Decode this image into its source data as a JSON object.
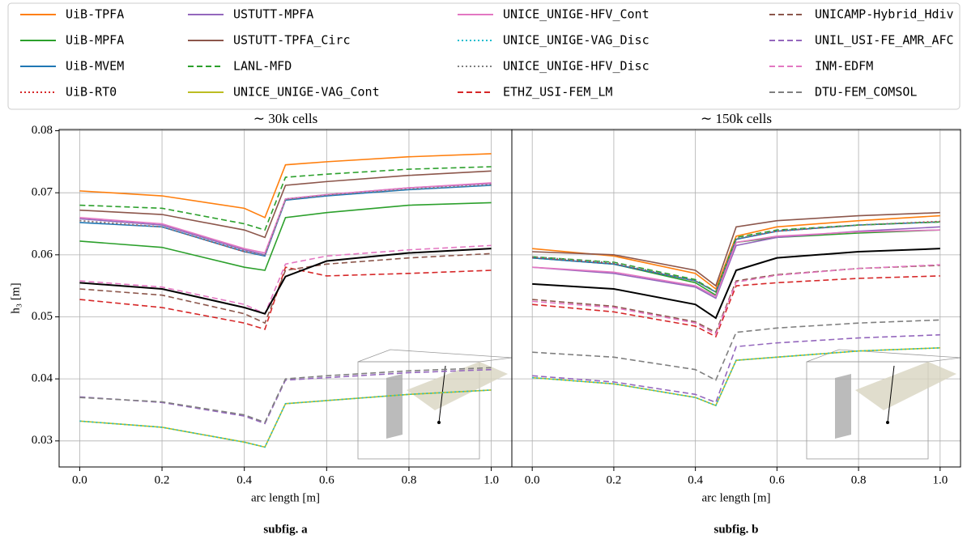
{
  "chart_data": [
    {
      "type": "line",
      "title": "∼ 30k cells",
      "xlabel": "arc length [m]",
      "ylabel": "h₃ [m]",
      "caption": "subfig. a",
      "x": [
        0,
        0.2,
        0.4,
        0.45,
        0.5,
        0.6,
        0.8,
        1.0
      ],
      "xlim": [
        -0.05,
        1.05
      ],
      "ylim": [
        0.0258,
        0.0802
      ],
      "xticks": [
        {
          "value": 0,
          "label": "0.0"
        },
        0.2,
        0.4,
        0.6,
        0.8,
        {
          "value": 1,
          "label": "1.0"
        }
      ],
      "yticks": [
        0.03,
        0.04,
        0.05,
        0.06,
        0.07,
        0.08
      ],
      "grid": true,
      "series": [
        {
          "name": "UiB-TPFA",
          "color": "#ff7f0e",
          "dash": "solid",
          "values": [
            0.0703,
            0.0695,
            0.0675,
            0.066,
            0.0745,
            0.075,
            0.0758,
            0.0763
          ]
        },
        {
          "name": "UiB-MPFA",
          "color": "#2ca02c",
          "dash": "solid",
          "values": [
            0.0622,
            0.0612,
            0.058,
            0.0575,
            0.066,
            0.0668,
            0.068,
            0.0684
          ]
        },
        {
          "name": "UiB-MVEM",
          "color": "#1f77b4",
          "dash": "solid",
          "values": [
            0.0652,
            0.0645,
            0.0605,
            0.0598,
            0.0688,
            0.0695,
            0.0705,
            0.0712
          ]
        },
        {
          "name": "UiB-RT0",
          "color": "#d62728",
          "dash": "dotted",
          "values": [
            0.0655,
            0.0645,
            0.0605,
            0.06,
            0.069,
            0.0697,
            0.0707,
            0.0714
          ]
        },
        {
          "name": "USTUTT-MPFA",
          "color": "#9467bd",
          "dash": "solid",
          "values": [
            0.0658,
            0.0648,
            0.0608,
            0.06,
            0.069,
            0.0697,
            0.0708,
            0.0715
          ]
        },
        {
          "name": "USTUTT-TPFA_Circ",
          "color": "#8c564b",
          "dash": "solid",
          "values": [
            0.0672,
            0.0665,
            0.064,
            0.0628,
            0.0712,
            0.0718,
            0.0728,
            0.0735
          ]
        },
        {
          "name": "LANL-MFD",
          "color": "#2ca02c",
          "dash": "dashed",
          "values": [
            0.068,
            0.0675,
            0.065,
            0.064,
            0.0725,
            0.073,
            0.0738,
            0.0742
          ]
        },
        {
          "name": "UNICE_UNIGE-VAG_Cont",
          "color": "#bcbd22",
          "dash": "solid",
          "values": [
            0.0332,
            0.0322,
            0.0298,
            0.029,
            0.036,
            0.0365,
            0.0375,
            0.0382
          ]
        },
        {
          "name": "UNICE_UNIGE-HFV_Cont",
          "color": "#e377c2",
          "dash": "solid",
          "values": [
            0.066,
            0.065,
            0.061,
            0.0603,
            0.069,
            0.0697,
            0.0708,
            0.0716
          ]
        },
        {
          "name": "UNICE_UNIGE-VAG_Disc",
          "color": "#17becf",
          "dash": "dotted",
          "values": [
            0.0332,
            0.0322,
            0.0298,
            0.029,
            0.036,
            0.0365,
            0.0375,
            0.0382
          ]
        },
        {
          "name": "UNICE_UNIGE-HFV_Disc",
          "color": "#7f7f7f",
          "dash": "dotted",
          "values": [
            0.0655,
            0.0645,
            0.0606,
            0.0599,
            0.0689,
            0.0696,
            0.0706,
            0.0713
          ]
        },
        {
          "name": "ETHZ_USI-FEM_LM",
          "color": "#d62728",
          "dash": "dashed",
          "values": [
            0.0528,
            0.0515,
            0.049,
            0.048,
            0.058,
            0.0566,
            0.057,
            0.0575
          ]
        },
        {
          "name": "UNICAMP-Hybrid_Hdiv",
          "color": "#8c564b",
          "dash": "dashed",
          "values": [
            0.0545,
            0.0535,
            0.0505,
            0.049,
            0.0575,
            0.0585,
            0.0595,
            0.0602
          ]
        },
        {
          "name": "UNIL_USI-FE_AMR_AFC",
          "color": "#9467bd",
          "dash": "dashed",
          "values": [
            0.0371,
            0.0362,
            0.034,
            0.0328,
            0.0398,
            0.0402,
            0.041,
            0.0415
          ]
        },
        {
          "name": "INM-EDFM",
          "color": "#e377c2",
          "dash": "dashed",
          "values": [
            0.0558,
            0.0548,
            0.052,
            0.0505,
            0.0585,
            0.0598,
            0.0608,
            0.0615
          ]
        },
        {
          "name": "DTU-FEM_COMSOL",
          "color": "#7f7f7f",
          "dash": "dashed",
          "values": [
            0.037,
            0.0363,
            0.0342,
            0.033,
            0.04,
            0.0405,
            0.0413,
            0.0418
          ]
        },
        {
          "color": "#000000",
          "dash": "solid",
          "values": [
            0.0555,
            0.0545,
            0.0515,
            0.0505,
            0.0565,
            0.059,
            0.0603,
            0.061
          ]
        }
      ]
    },
    {
      "type": "line",
      "title": "∼ 150k cells",
      "xlabel": "arc length [m]",
      "caption": "subfig. b",
      "x": [
        0,
        0.2,
        0.4,
        0.45,
        0.5,
        0.6,
        0.8,
        1.0
      ],
      "xlim": [
        -0.05,
        1.05
      ],
      "ylim": [
        0.0258,
        0.0802
      ],
      "xticks": [
        {
          "value": 0,
          "label": "0.0"
        },
        0.2,
        0.4,
        0.6,
        0.8,
        {
          "value": 1,
          "label": "1.0"
        }
      ],
      "yticks": [
        0.03,
        0.04,
        0.05,
        0.06,
        0.07,
        0.08
      ],
      "grid": true,
      "series": [
        {
          "color": "#ff7f0e",
          "dash": "solid",
          "values": [
            0.061,
            0.0598,
            0.057,
            0.0545,
            0.063,
            0.0645,
            0.0655,
            0.0663
          ]
        },
        {
          "color": "#2ca02c",
          "dash": "solid",
          "values": [
            0.0595,
            0.0585,
            0.0555,
            0.0535,
            0.062,
            0.0628,
            0.0635,
            0.064
          ]
        },
        {
          "color": "#1f77b4",
          "dash": "solid",
          "values": [
            0.0595,
            0.0585,
            0.0558,
            0.054,
            0.0625,
            0.0638,
            0.0648,
            0.0653
          ]
        },
        {
          "color": "#d62728",
          "dash": "dotted",
          "values": [
            0.0596,
            0.0586,
            0.0558,
            0.054,
            0.0626,
            0.0638,
            0.0648,
            0.0654
          ]
        },
        {
          "color": "#9467bd",
          "dash": "solid",
          "values": [
            0.058,
            0.057,
            0.0548,
            0.053,
            0.0615,
            0.0628,
            0.0638,
            0.0645
          ]
        },
        {
          "color": "#8c564b",
          "dash": "solid",
          "values": [
            0.0605,
            0.06,
            0.0575,
            0.055,
            0.0645,
            0.0655,
            0.0663,
            0.0668
          ]
        },
        {
          "color": "#2ca02c",
          "dash": "dashed",
          "values": [
            0.0597,
            0.0588,
            0.056,
            0.054,
            0.0628,
            0.064,
            0.0648,
            0.0653
          ]
        },
        {
          "color": "#bcbd22",
          "dash": "solid",
          "values": [
            0.0402,
            0.0392,
            0.037,
            0.0357,
            0.043,
            0.0435,
            0.0445,
            0.045
          ]
        },
        {
          "color": "#e377c2",
          "dash": "solid",
          "values": [
            0.058,
            0.0572,
            0.055,
            0.0533,
            0.062,
            0.063,
            0.0637,
            0.064
          ]
        },
        {
          "color": "#17becf",
          "dash": "dotted",
          "values": [
            0.0402,
            0.0392,
            0.037,
            0.0357,
            0.043,
            0.0435,
            0.0445,
            0.045
          ]
        },
        {
          "color": "#7f7f7f",
          "dash": "dotted",
          "values": [
            0.0597,
            0.0587,
            0.0558,
            0.054,
            0.0626,
            0.0639,
            0.0648,
            0.0653
          ]
        },
        {
          "color": "#d62728",
          "dash": "dashed",
          "values": [
            0.052,
            0.0508,
            0.0485,
            0.0468,
            0.055,
            0.0555,
            0.0562,
            0.0566
          ]
        },
        {
          "color": "#8c564b",
          "dash": "dashed",
          "values": [
            0.0528,
            0.0517,
            0.0492,
            0.0475,
            0.0558,
            0.0568,
            0.0578,
            0.0583
          ]
        },
        {
          "color": "#9467bd",
          "dash": "dashed",
          "values": [
            0.0405,
            0.0395,
            0.0375,
            0.0362,
            0.0452,
            0.0458,
            0.0466,
            0.0471
          ]
        },
        {
          "color": "#e377c2",
          "dash": "dashed",
          "values": [
            0.0525,
            0.0515,
            0.049,
            0.0472,
            0.0556,
            0.0567,
            0.0578,
            0.0584
          ]
        },
        {
          "color": "#7f7f7f",
          "dash": "dashed",
          "values": [
            0.0443,
            0.0435,
            0.0415,
            0.0398,
            0.0475,
            0.0482,
            0.049,
            0.0495
          ]
        },
        {
          "color": "#000000",
          "dash": "solid",
          "values": [
            0.0553,
            0.0545,
            0.052,
            0.0498,
            0.0575,
            0.0595,
            0.0605,
            0.061
          ]
        }
      ]
    }
  ]
}
